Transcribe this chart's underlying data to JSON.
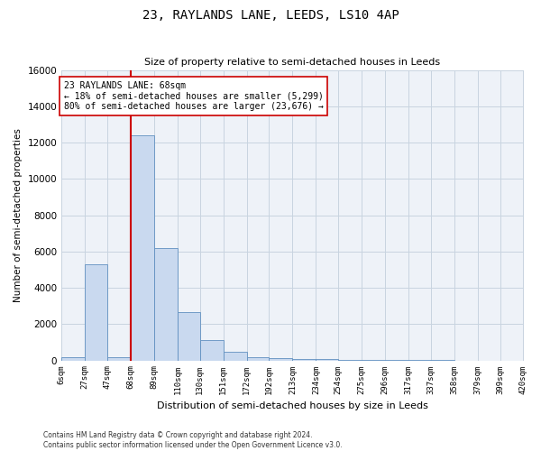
{
  "title1": "23, RAYLANDS LANE, LEEDS, LS10 4AP",
  "title2": "Size of property relative to semi-detached houses in Leeds",
  "xlabel": "Distribution of semi-detached houses by size in Leeds",
  "ylabel": "Number of semi-detached properties",
  "property_size": 68,
  "property_label": "23 RAYLANDS LANE: 68sqm",
  "annotation_smaller": "← 18% of semi-detached houses are smaller (5,299)",
  "annotation_larger": "80% of semi-detached houses are larger (23,676) →",
  "footnote1": "Contains HM Land Registry data © Crown copyright and database right 2024.",
  "footnote2": "Contains public sector information licensed under the Open Government Licence v3.0.",
  "bar_color": "#c9d9ef",
  "bar_edge_color": "#6090c0",
  "vline_color": "#cc0000",
  "annotation_box_edge": "#cc0000",
  "grid_color": "#c8d4e0",
  "bg_color": "#eef2f8",
  "bins": [
    6,
    27,
    47,
    68,
    89,
    110,
    130,
    151,
    172,
    192,
    213,
    234,
    254,
    275,
    296,
    317,
    337,
    358,
    379,
    399,
    420
  ],
  "bin_labels": [
    "6sqm",
    "27sqm",
    "47sqm",
    "68sqm",
    "89sqm",
    "110sqm",
    "130sqm",
    "151sqm",
    "172sqm",
    "192sqm",
    "213sqm",
    "234sqm",
    "254sqm",
    "275sqm",
    "296sqm",
    "317sqm",
    "337sqm",
    "358sqm",
    "379sqm",
    "399sqm",
    "420sqm"
  ],
  "bar_heights": [
    200,
    5300,
    200,
    12400,
    6200,
    2650,
    1100,
    450,
    200,
    130,
    80,
    60,
    40,
    20,
    10,
    5,
    3,
    2,
    1,
    1
  ],
  "ylim": [
    0,
    16000
  ],
  "yticks": [
    0,
    2000,
    4000,
    6000,
    8000,
    10000,
    12000,
    14000,
    16000
  ]
}
